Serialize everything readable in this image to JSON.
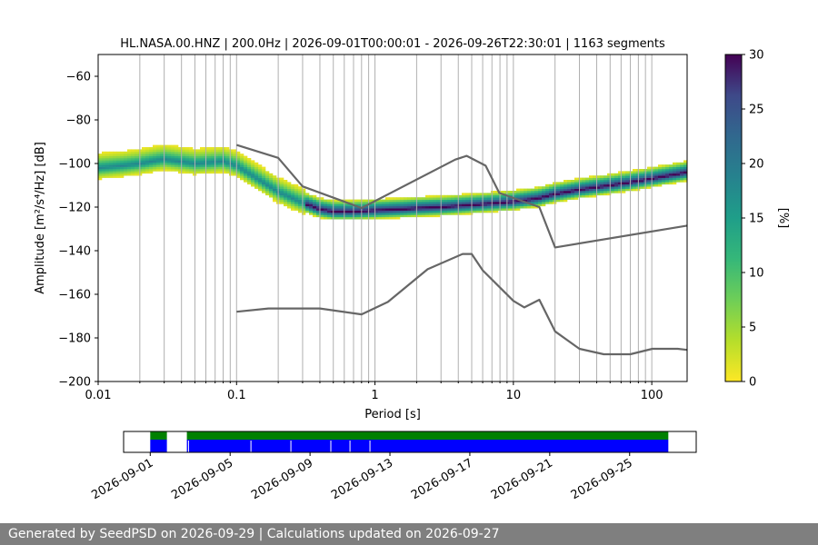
{
  "chart_data": [
    {
      "type": "heatmap",
      "title": "HL.NASA.00.HNZ | 200.0Hz | 2026-09-01T00:00:01 - 2026-09-26T22:30:01 | 1163 segments",
      "xlabel": "Period [s]",
      "ylabel": "Amplitude [m²/s⁴/Hz] [dB]",
      "x_scale": "log",
      "xlim": [
        0.01,
        180
      ],
      "ylim": [
        -200,
        -50
      ],
      "x_ticks": [
        0.01,
        0.1,
        1,
        10,
        100
      ],
      "x_tick_labels": [
        "0.01",
        "0.1",
        "1",
        "10",
        "100"
      ],
      "y_ticks": [
        -200,
        -180,
        -160,
        -140,
        -120,
        -100,
        -80,
        -60
      ],
      "y_tick_labels": [
        "−200",
        "−180",
        "−160",
        "−140",
        "−120",
        "−100",
        "−80",
        "−60"
      ],
      "grid": true,
      "colorbar": {
        "label": "[%]",
        "range": [
          0,
          30
        ],
        "ticks": [
          0,
          5,
          10,
          15,
          20,
          25,
          30
        ],
        "tick_labels": [
          "0",
          "5",
          "10",
          "15",
          "20",
          "25",
          "30"
        ],
        "colormap": "viridis_r"
      },
      "mode_curve": [
        [
          0.01,
          -102
        ],
        [
          0.015,
          -101
        ],
        [
          0.02,
          -100
        ],
        [
          0.03,
          -98
        ],
        [
          0.05,
          -100
        ],
        [
          0.08,
          -99
        ],
        [
          0.1,
          -101
        ],
        [
          0.15,
          -108
        ],
        [
          0.2,
          -113
        ],
        [
          0.3,
          -118
        ],
        [
          0.4,
          -121
        ],
        [
          0.5,
          -122
        ],
        [
          0.7,
          -122
        ],
        [
          1,
          -121.5
        ],
        [
          1.5,
          -121
        ],
        [
          2,
          -120.5
        ],
        [
          3,
          -120
        ],
        [
          5,
          -119
        ],
        [
          8,
          -118
        ],
        [
          10,
          -117.5
        ],
        [
          15,
          -116
        ],
        [
          20,
          -114
        ],
        [
          30,
          -112
        ],
        [
          50,
          -110
        ],
        [
          80,
          -108
        ],
        [
          120,
          -106
        ],
        [
          180,
          -104
        ]
      ],
      "spread_db_upper": 8,
      "spread_db_lower": 6,
      "series": [
        {
          "name": "",
          "x": [
            0.1,
            0.2,
            0.3,
            0.8,
            3.8,
            4.6,
            6.3,
            7.9,
            15.4,
            20.0,
            180
          ],
          "y": [
            -91.5,
            -97.4,
            -110.5,
            -120.4,
            -98.2,
            -96.5,
            -101.0,
            -113.5,
            -120.0,
            -138.5,
            -128.5
          ],
          "color": "#666666"
        },
        {
          "name": "",
          "x": [
            0.1,
            0.17,
            0.4,
            0.8,
            1.24,
            2.4,
            4.3,
            5.0,
            6.0,
            10.0,
            12.0,
            15.4,
            20.0,
            30.0,
            45.0,
            70.0,
            101.0,
            154.0,
            180
          ],
          "y": [
            -168.0,
            -166.5,
            -166.5,
            -169.2,
            -163.5,
            -148.5,
            -141.5,
            -141.5,
            -149.0,
            -163.0,
            -166.0,
            -162.5,
            -177.0,
            -185.0,
            -187.5,
            -187.5,
            -185.0,
            -185.0,
            -185.5
          ],
          "color": "#666666"
        }
      ]
    },
    {
      "type": "timeline",
      "x_tick_labels": [
        "2026-09-01",
        "2026-09-05",
        "2026-09-09",
        "2026-09-13",
        "2026-09-17",
        "2026-09-21",
        "2026-09-25"
      ],
      "x_tick_values": [
        "2026-09-01",
        "2026-09-05",
        "2026-09-09",
        "2026-09-13",
        "2026-09-17",
        "2026-09-21",
        "2026-09-25"
      ],
      "xlim": [
        "2026-08-30T16:00",
        "2026-09-28T08:00"
      ],
      "data_available": [
        [
          "2026-09-01T00:00",
          "2026-09-01T20:00"
        ],
        [
          "2026-09-02T20:00",
          "2026-09-26T22:30"
        ]
      ],
      "data_used": [
        [
          "2026-09-01T00:00",
          "2026-09-01T20:00"
        ],
        [
          "2026-09-02T20:00",
          "2026-09-26T22:30"
        ]
      ],
      "gaps": [
        "2026-09-02T22:00",
        "2026-09-06T01:00",
        "2026-09-08T01:00",
        "2026-09-10T01:00",
        "2026-09-11T00:00",
        "2026-09-12T00:00"
      ],
      "available_color": "#008000",
      "used_color": "#0000ff"
    }
  ],
  "footer": {
    "text": "Generated by SeedPSD on 2026-09-29 | Calculations updated on 2026-09-27"
  }
}
